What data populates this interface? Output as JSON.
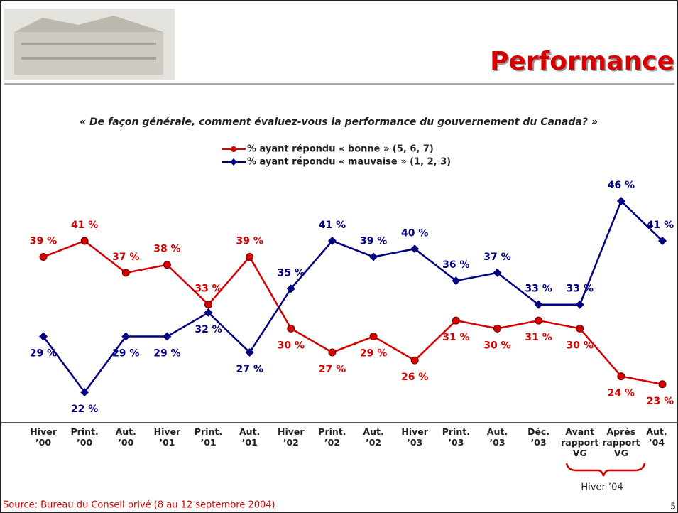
{
  "chart_data": {
    "type": "line",
    "title": "Performance",
    "subtitle": "« De façon générale, comment évaluez-vous la performance du gouvernement du Canada? »",
    "categories": [
      "Hiver\n’00",
      "Print.\n’00",
      "Aut.\n’00",
      "Hiver\n’01",
      "Print.\n’01",
      "Aut.\n’01",
      "Hiver\n’02",
      "Print.\n’02",
      "Aut.\n’02",
      "Hiver\n’03",
      "Print.\n’03",
      "Aut.\n’03",
      "Déc.\n’03",
      "Avant\nrapport\nVG",
      "Après\nrapport\nVG",
      "Aut.\n’04"
    ],
    "series": [
      {
        "name": "% ayant répondu « bonne » (5, 6, 7)",
        "color": "#d50000",
        "values": [
          39,
          41,
          37,
          38,
          33,
          39,
          30,
          27,
          29,
          26,
          31,
          30,
          31,
          30,
          24,
          23
        ],
        "value_labels": [
          "39 %",
          "41 %",
          "37 %",
          "38 %",
          "33 %",
          "39 %",
          "30 %",
          "27 %",
          "29 %",
          "26 %",
          "31 %",
          "30 %",
          "31 %",
          "30 %",
          "24 %",
          "23 %"
        ]
      },
      {
        "name": "% ayant répondu « mauvaise » (1, 2, 3)",
        "color": "#000080",
        "values": [
          29,
          22,
          29,
          29,
          32,
          27,
          35,
          41,
          39,
          40,
          36,
          37,
          33,
          33,
          46,
          41
        ],
        "value_labels": [
          "29 %",
          "22 %",
          "29 %",
          "29 %",
          "32 %",
          "27 %",
          "35 %",
          "41 %",
          "39 %",
          "40 %",
          "36 %",
          "37 %",
          "33 %",
          "33 %",
          "46 %",
          "41 %"
        ]
      }
    ],
    "group_label": "Hiver ’04",
    "source": "Source: Bureau du Conseil privé (8 au 12 septembre 2004)",
    "page_number": "5"
  }
}
